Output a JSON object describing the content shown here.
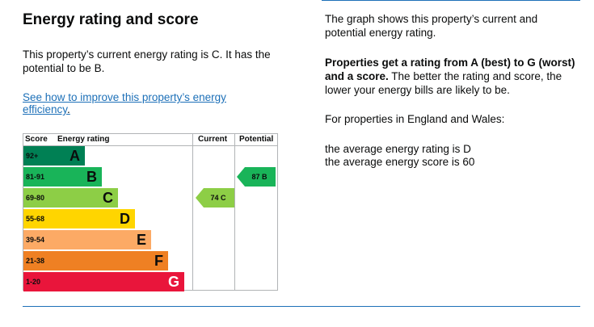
{
  "heading": "Energy rating and score",
  "lead_text": "This property’s current energy rating is C. It has the potential to be B.",
  "improve_link": "See how to improve this property’s energy efficiency",
  "improve_link_suffix": ".",
  "right": {
    "intro": "The graph shows this property’s current and potential energy rating.",
    "bold_part": "Properties get a rating from A (best) to G (worst) and a score.",
    "normal_part": " The better the rating and score, the lower your energy bills are likely to be.",
    "region": "For properties in England and Wales:",
    "avg_rating": "the average energy rating is D",
    "avg_score": "the average energy score is 60"
  },
  "chart_data": {
    "type": "table",
    "columns": [
      "Score",
      "Energy rating",
      "Current",
      "Potential"
    ],
    "bands": [
      {
        "score_range": "92+",
        "letter": "A",
        "color": "#008054"
      },
      {
        "score_range": "81-91",
        "letter": "B",
        "color": "#19b459"
      },
      {
        "score_range": "69-80",
        "letter": "C",
        "color": "#8dce46"
      },
      {
        "score_range": "55-68",
        "letter": "D",
        "color": "#ffd500"
      },
      {
        "score_range": "39-54",
        "letter": "E",
        "color": "#fcaa65"
      },
      {
        "score_range": "21-38",
        "letter": "F",
        "color": "#ef8023"
      },
      {
        "score_range": "1-20",
        "letter": "G",
        "color": "#e9153b"
      }
    ],
    "current": {
      "score": 74,
      "letter": "C",
      "label": "74 C"
    },
    "potential": {
      "score": 87,
      "letter": "B",
      "label": "87 B"
    }
  }
}
